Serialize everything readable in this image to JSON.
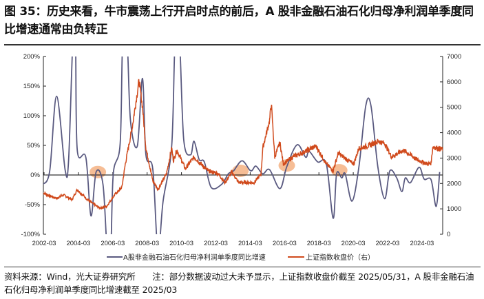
{
  "title": "图 35：历史来看，牛市震荡上行开启时点的前后，A 股非金融石油石化归母净利润单季度同比增速通常由负转正",
  "source": "资料来源：Wind，光大证券研究所　　注：部分数据波动过大未予显示，上证指数收盘价截至 2025/05/31，A 股非金融石油石化归母净利润单季度同比增速截至 2025/03",
  "chart_data": {
    "type": "line",
    "title": "",
    "xlabel": "",
    "ylabel": "",
    "x_ticks": [
      "2002-03",
      "2004-03",
      "2006-03",
      "2008-03",
      "2010-03",
      "2012-03",
      "2014-03",
      "2016-03",
      "2018-03",
      "2020-03",
      "2022-03",
      "2024-03"
    ],
    "x_range": [
      2002.1,
      2025.4
    ],
    "y_left": {
      "range": [
        -100,
        200
      ],
      "ticks": [
        -100,
        -50,
        0,
        50,
        100,
        150,
        200
      ],
      "tick_labels": [
        "-100%",
        "-50%",
        "0%",
        "50%",
        "100%",
        "150%",
        "200%"
      ]
    },
    "y_right": {
      "range": [
        0,
        7000
      ],
      "ticks": [
        0,
        1000,
        2000,
        3000,
        4000,
        5000,
        6000,
        7000
      ],
      "tick_labels": [
        "0",
        "1000",
        "2000",
        "3000",
        "4000",
        "5000",
        "6000",
        "7000"
      ]
    },
    "grid": false,
    "legend_position": "bottom",
    "series": [
      {
        "name": "A股非金融石油石化归母净利润单季度同比增速",
        "axis": "left",
        "color": "#5a5a80",
        "x": [
          2002.1,
          2002.5,
          2002.9,
          2003.4,
          2003.6,
          2003.85,
          2004.0,
          2004.1,
          2004.6,
          2004.9,
          2005.2,
          2005.6,
          2005.85,
          2006.05,
          2006.2,
          2006.6,
          2006.75,
          2007.0,
          2007.2,
          2007.6,
          2007.9,
          2008.1,
          2008.5,
          2008.8,
          2009.1,
          2009.6,
          2009.8,
          2010.05,
          2010.3,
          2010.7,
          2010.9,
          2011.2,
          2011.5,
          2011.9,
          2012.5,
          2012.9,
          2013.2,
          2013.7,
          2014.2,
          2014.5,
          2014.9,
          2015.3,
          2015.9,
          2016.3,
          2016.9,
          2017.4,
          2017.6,
          2018.1,
          2018.6,
          2019.0,
          2019.2,
          2019.5,
          2019.7,
          2020.1,
          2020.5,
          2020.9,
          2021.2,
          2021.6,
          2022.0,
          2022.3,
          2022.7,
          2023.0,
          2023.2,
          2023.5,
          2024.0,
          2024.3,
          2024.7,
          2025.0,
          2025.2
        ],
        "values": [
          -16,
          7,
          133,
          8,
          26,
          230,
          230,
          43,
          30,
          -69,
          5,
          -16,
          -130,
          -130,
          2,
          53,
          230,
          230,
          92,
          49,
          163,
          34,
          10,
          -130,
          -44,
          49,
          230,
          230,
          60,
          34,
          57,
          26,
          22,
          -21,
          -16,
          2,
          7,
          24,
          7,
          15,
          2,
          9,
          -23,
          14,
          51,
          30,
          40,
          22,
          19,
          -73,
          2,
          -5,
          2,
          -44,
          14,
          117,
          117,
          14,
          -40,
          7,
          -5,
          -28,
          -5,
          -13,
          13,
          -7,
          -8,
          -53,
          5
        ]
      },
      {
        "name": "上证指数收盘价（右）",
        "axis": "right",
        "color": "#d04a1c",
        "x": [
          2002.1,
          2002.9,
          2003.3,
          2003.8,
          2004.1,
          2004.7,
          2005.4,
          2005.8,
          2006.3,
          2006.7,
          2006.9,
          2007.3,
          2007.7,
          2007.9,
          2008.1,
          2008.5,
          2008.8,
          2009.3,
          2009.6,
          2009.7,
          2009.9,
          2010.4,
          2010.9,
          2011.7,
          2012.3,
          2012.7,
          2013.1,
          2013.5,
          2014.4,
          2014.8,
          2014.9,
          2015.3,
          2015.4,
          2015.6,
          2015.9,
          2016.1,
          2016.7,
          2017.2,
          2018.0,
          2018.6,
          2019.0,
          2019.3,
          2019.7,
          2020.2,
          2020.5,
          2021.0,
          2021.6,
          2022.0,
          2022.4,
          2023.1,
          2023.9,
          2024.5,
          2024.7,
          2024.8,
          2025.4
        ],
        "values": [
          1630,
          1410,
          1550,
          1360,
          1760,
          1360,
          1030,
          1085,
          1570,
          1845,
          2770,
          4200,
          6050,
          5020,
          3390,
          2115,
          1760,
          2390,
          3390,
          2900,
          3310,
          2580,
          3040,
          2500,
          2390,
          2035,
          2440,
          2035,
          2035,
          2360,
          3390,
          4480,
          5150,
          3040,
          3610,
          2770,
          3070,
          3200,
          3470,
          2770,
          2500,
          3200,
          2980,
          2770,
          3390,
          3470,
          3660,
          3580,
          3040,
          3310,
          2930,
          2770,
          2800,
          3440,
          3340
        ]
      }
    ],
    "highlights": [
      {
        "x": 2005.3,
        "y": 5
      },
      {
        "x": 2013.6,
        "y": 7
      },
      {
        "x": 2016.3,
        "y": 16
      },
      {
        "x": 2019.35,
        "y": 8
      }
    ]
  }
}
